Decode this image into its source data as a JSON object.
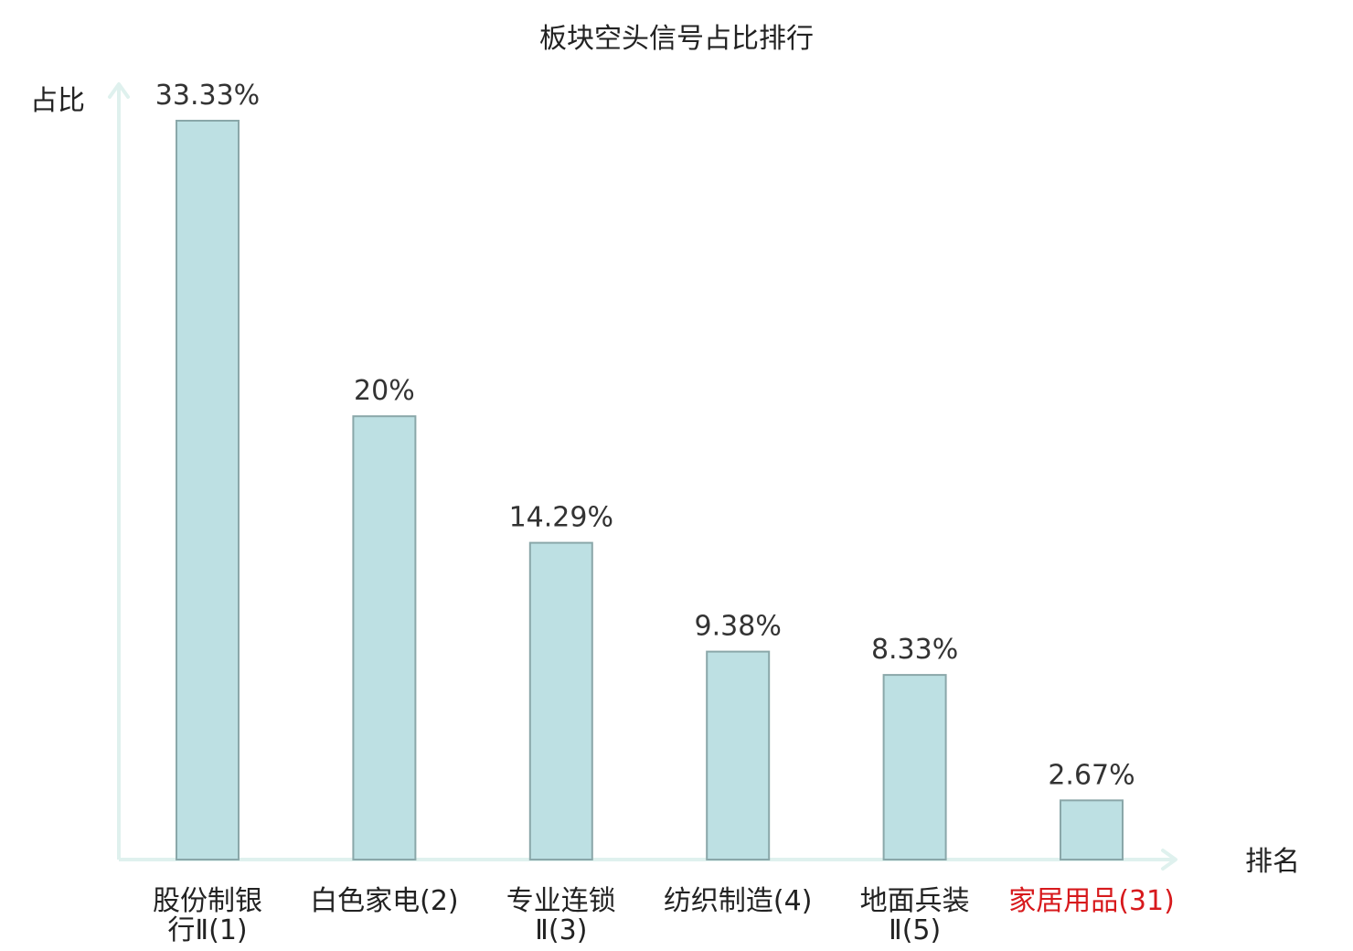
{
  "chart_data": {
    "type": "bar",
    "title": "板块空头信号占比排行",
    "ylabel": "占比",
    "xlabel": "排名",
    "ylim": [
      0,
      35
    ],
    "grid": false,
    "categories": [
      [
        "股份制银",
        "行Ⅱ(1)"
      ],
      [
        "白色家电(2)"
      ],
      [
        "专业连锁",
        "Ⅱ(3)"
      ],
      [
        "纺织制造(4)"
      ],
      [
        "地面兵装",
        "Ⅱ(5)"
      ],
      [
        "家居用品(31)"
      ]
    ],
    "values": [
      33.33,
      20,
      14.29,
      9.38,
      8.33,
      2.67
    ],
    "data_labels": [
      "33.33%",
      "20%",
      "14.29%",
      "9.38%",
      "8.33%",
      "2.67%"
    ],
    "highlight_index": 5,
    "colors": {
      "bar_fill": "#bde0e3",
      "bar_stroke": "#8aa7a9",
      "axis": "#dff1ee",
      "text": "#222222",
      "highlight": "#d7191c"
    }
  }
}
